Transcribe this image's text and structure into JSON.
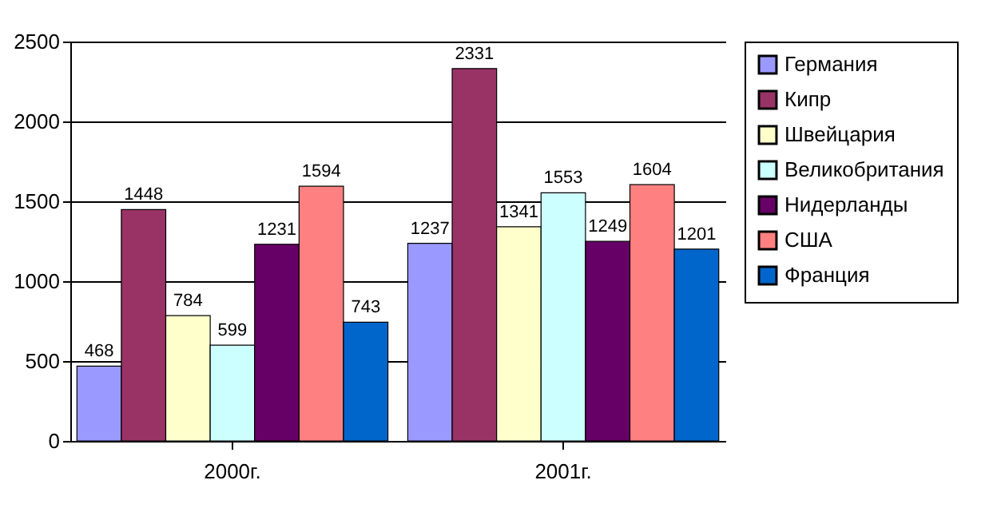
{
  "chart_data": {
    "type": "bar",
    "categories": [
      "2000г.",
      "2001г."
    ],
    "series": [
      {
        "name": "Германия",
        "color": "#9999ff",
        "values": [
          468,
          1237
        ]
      },
      {
        "name": "Кипр",
        "color": "#993366",
        "values": [
          1448,
          2331
        ]
      },
      {
        "name": "Швейцария",
        "color": "#ffffcc",
        "values": [
          784,
          1341
        ]
      },
      {
        "name": "Великобритания",
        "color": "#ccffff",
        "values": [
          599,
          1553
        ]
      },
      {
        "name": "Нидерланды",
        "color": "#660066",
        "values": [
          1231,
          1249
        ]
      },
      {
        "name": "США",
        "color": "#ff8080",
        "values": [
          1594,
          1604
        ]
      },
      {
        "name": "Франция",
        "color": "#0066cc",
        "values": [
          743,
          1201
        ]
      }
    ],
    "ylim": [
      0,
      2500
    ],
    "yticks": [
      0,
      500,
      1000,
      1500,
      2000,
      2500
    ],
    "grid": "y",
    "legend": "right",
    "data_labels": true
  }
}
